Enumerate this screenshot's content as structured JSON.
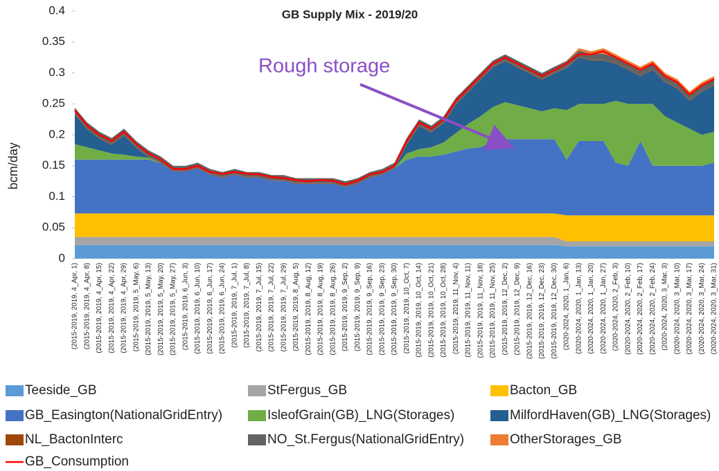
{
  "chart_data": {
    "type": "area",
    "title": "GB Supply Mix - 2019/20",
    "y_label": "bcm/day",
    "annotation": "Rough storage",
    "ylim": [
      0,
      0.4
    ],
    "yticks": [
      0,
      0.05,
      0.1,
      0.15,
      0.2,
      0.25,
      0.3,
      0.35,
      0.4
    ],
    "stacked": true,
    "categories": [
      "(2015-2019, 2019, 4_Apr, 1)",
      "(2015-2019, 2019, 4_Apr, 8)",
      "(2015-2019, 2019, 4_Apr, 15)",
      "(2015-2019, 2019, 4_Apr, 22)",
      "(2015-2019, 2019, 4_Apr, 29)",
      "(2015-2019, 2019, 5_May, 6)",
      "(2015-2019, 2019, 5_May, 13)",
      "(2015-2019, 2019, 5_May, 20)",
      "(2015-2019, 2019, 5_May, 27)",
      "(2015-2019, 2019, 6_Jun, 3)",
      "(2015-2019, 2019, 6_Jun, 10)",
      "(2015-2019, 2019, 6_Jun, 17)",
      "(2015-2019, 2019, 6_Jun, 24)",
      "(2015-2019, 2019, 7_Jul, 1)",
      "(2015-2019, 2019, 7_Jul, 8)",
      "(2015-2019, 2019, 7_Jul, 15)",
      "(2015-2019, 2019, 7_Jul, 22)",
      "(2015-2019, 2019, 7_Jul, 29)",
      "(2015-2019, 2019, 8_Aug, 5)",
      "(2015-2019, 2019, 8_Aug, 12)",
      "(2015-2019, 2019, 8_Aug, 19)",
      "(2015-2019, 2019, 8_Aug, 26)",
      "(2015-2019, 2019, 9_Sep, 2)",
      "(2015-2019, 2019, 9_Sep, 9)",
      "(2015-2019, 2019, 9_Sep, 16)",
      "(2015-2019, 2019, 9_Sep, 23)",
      "(2015-2019, 2019, 9_Sep, 30)",
      "(2015-2019, 2019, 10_Oct, 7)",
      "(2015-2019, 2019, 10_Oct, 14)",
      "(2015-2019, 2019, 10_Oct, 21)",
      "(2015-2019, 2019, 10_Oct, 28)",
      "(2015-2019, 2019, 11_Nov, 4)",
      "(2015-2019, 2019, 11_Nov, 11)",
      "(2015-2019, 2019, 11_Nov, 18)",
      "(2015-2019, 2019, 11_Nov, 25)",
      "(2015-2019, 2019, 12_Dec, 2)",
      "(2015-2019, 2019, 12_Dec, 9)",
      "(2015-2019, 2019, 12_Dec, 16)",
      "(2015-2019, 2019, 12_Dec, 23)",
      "(2015-2019, 2019, 12_Dec, 30)",
      "(2020-2024, 2020, 1_Jan, 6)",
      "(2020-2024, 2020, 1_Jan, 13)",
      "(2020-2024, 2020, 1_Jan, 20)",
      "(2020-2024, 2020, 1_Jan, 27)",
      "(2020-2024, 2020, 2_Feb, 3)",
      "(2020-2024, 2020, 2_Feb, 10)",
      "(2020-2024, 2020, 2_Feb, 17)",
      "(2020-2024, 2020, 2_Feb, 24)",
      "(2020-2024, 2020, 3_Mar, 3)",
      "(2020-2024, 2020, 3_Mar, 10)",
      "(2020-2024, 2020, 3_Mar, 17)",
      "(2020-2024, 2020, 3_Mar, 24)",
      "(2020-2024, 2020, 3_Mar, 31)"
    ],
    "series": [
      {
        "name": "Teeside_GB",
        "color": "#5b9bd5",
        "values": [
          0.022,
          0.022,
          0.022,
          0.022,
          0.022,
          0.022,
          0.022,
          0.022,
          0.022,
          0.022,
          0.022,
          0.022,
          0.022,
          0.022,
          0.022,
          0.022,
          0.022,
          0.022,
          0.022,
          0.022,
          0.022,
          0.022,
          0.022,
          0.022,
          0.022,
          0.022,
          0.022,
          0.022,
          0.022,
          0.022,
          0.022,
          0.022,
          0.022,
          0.022,
          0.022,
          0.022,
          0.022,
          0.022,
          0.022,
          0.022,
          0.02,
          0.02,
          0.02,
          0.02,
          0.02,
          0.02,
          0.02,
          0.02,
          0.02,
          0.02,
          0.02,
          0.02,
          0.02
        ]
      },
      {
        "name": "StFergus_GB",
        "color": "#a5a5a5",
        "values": [
          0.013,
          0.013,
          0.013,
          0.013,
          0.013,
          0.013,
          0.013,
          0.013,
          0.013,
          0.013,
          0.013,
          0.013,
          0.013,
          0.013,
          0.013,
          0.013,
          0.013,
          0.013,
          0.013,
          0.013,
          0.013,
          0.013,
          0.013,
          0.013,
          0.013,
          0.013,
          0.013,
          0.013,
          0.013,
          0.013,
          0.013,
          0.013,
          0.013,
          0.013,
          0.013,
          0.013,
          0.013,
          0.013,
          0.013,
          0.013,
          0.008,
          0.008,
          0.008,
          0.008,
          0.008,
          0.008,
          0.008,
          0.008,
          0.008,
          0.008,
          0.008,
          0.008,
          0.008
        ]
      },
      {
        "name": "Bacton_GB",
        "color": "#ffc000",
        "values": [
          0.038,
          0.038,
          0.038,
          0.038,
          0.038,
          0.038,
          0.038,
          0.038,
          0.038,
          0.038,
          0.038,
          0.038,
          0.038,
          0.038,
          0.038,
          0.038,
          0.038,
          0.038,
          0.038,
          0.038,
          0.038,
          0.038,
          0.038,
          0.038,
          0.038,
          0.038,
          0.038,
          0.038,
          0.038,
          0.038,
          0.038,
          0.038,
          0.038,
          0.038,
          0.038,
          0.038,
          0.038,
          0.038,
          0.038,
          0.038,
          0.042,
          0.042,
          0.042,
          0.042,
          0.042,
          0.042,
          0.042,
          0.042,
          0.042,
          0.042,
          0.042,
          0.042,
          0.042
        ]
      },
      {
        "name": "GB_Easington(NationalGridEntry)",
        "color": "#4472c4",
        "values": [
          0.087,
          0.087,
          0.087,
          0.087,
          0.087,
          0.087,
          0.087,
          0.081,
          0.068,
          0.068,
          0.073,
          0.063,
          0.058,
          0.063,
          0.058,
          0.058,
          0.053,
          0.053,
          0.048,
          0.048,
          0.048,
          0.048,
          0.043,
          0.048,
          0.058,
          0.063,
          0.073,
          0.087,
          0.092,
          0.092,
          0.095,
          0.1,
          0.105,
          0.107,
          0.117,
          0.12,
          0.12,
          0.12,
          0.12,
          0.12,
          0.09,
          0.12,
          0.12,
          0.12,
          0.085,
          0.08,
          0.12,
          0.08,
          0.08,
          0.08,
          0.08,
          0.08,
          0.085
        ]
      },
      {
        "name": "IsleofGrain(GB)_LNG(Storages)",
        "color": "#70ad47",
        "values": [
          0.025,
          0.02,
          0.015,
          0.01,
          0.008,
          0.005,
          0.003,
          0,
          0,
          0,
          0,
          0,
          0,
          0,
          0,
          0,
          0,
          0,
          0,
          0,
          0,
          0,
          0,
          0,
          0,
          0,
          0,
          0.01,
          0.012,
          0.015,
          0.02,
          0.03,
          0.04,
          0.05,
          0.055,
          0.06,
          0.055,
          0.05,
          0.045,
          0.05,
          0.08,
          0.06,
          0.06,
          0.06,
          0.1,
          0.1,
          0.06,
          0.1,
          0.08,
          0.07,
          0.06,
          0.05,
          0.05
        ]
      },
      {
        "name": "MilfordHaven(GB)_LNG(Storages)",
        "color": "#255e91",
        "values": [
          0.048,
          0.029,
          0.019,
          0.014,
          0.031,
          0.014,
          0.001,
          0,
          0,
          0,
          0,
          0,
          0,
          0,
          0,
          0,
          0,
          0,
          0,
          0,
          0,
          0,
          0,
          0,
          0,
          0,
          0,
          0.014,
          0.037,
          0.024,
          0.031,
          0.046,
          0.051,
          0.059,
          0.064,
          0.066,
          0.061,
          0.056,
          0.051,
          0.056,
          0.068,
          0.075,
          0.07,
          0.07,
          0.06,
          0.055,
          0.045,
          0.055,
          0.055,
          0.055,
          0.045,
          0.07,
          0.075
        ]
      },
      {
        "name": "NL_BactonInterc",
        "color": "#9e480e",
        "values": [
          0.001,
          0.001,
          0.001,
          0.001,
          0.001,
          0.001,
          0.001,
          0.001,
          0.001,
          0.001,
          0.001,
          0.001,
          0.001,
          0.001,
          0.001,
          0.001,
          0.001,
          0.001,
          0.001,
          0.001,
          0.001,
          0.001,
          0.001,
          0.001,
          0.001,
          0.001,
          0.001,
          0.001,
          0.001,
          0.001,
          0.001,
          0.001,
          0.001,
          0.001,
          0.001,
          0.001,
          0.001,
          0.001,
          0.001,
          0.001,
          0.001,
          0.001,
          0.001,
          0.001,
          0.001,
          0.001,
          0.001,
          0.001,
          0.001,
          0.001,
          0.001,
          0.001,
          0.001
        ]
      },
      {
        "name": "NO_St.Fergus(NationalGridEntry)",
        "color": "#636363",
        "values": [
          0.01,
          0.01,
          0.01,
          0.01,
          0.01,
          0.01,
          0.01,
          0.01,
          0.008,
          0.008,
          0.008,
          0.008,
          0.008,
          0.008,
          0.008,
          0.008,
          0.008,
          0.008,
          0.008,
          0.008,
          0.008,
          0.008,
          0.008,
          0.008,
          0.008,
          0.008,
          0.008,
          0.01,
          0.01,
          0.01,
          0.01,
          0.01,
          0.01,
          0.01,
          0.01,
          0.01,
          0.01,
          0.01,
          0.01,
          0.01,
          0.01,
          0.01,
          0.01,
          0.01,
          0.01,
          0.01,
          0.01,
          0.01,
          0.01,
          0.01,
          0.01,
          0.01,
          0.01
        ]
      },
      {
        "name": "OtherStorages_GB",
        "color": "#ed7d31",
        "values": [
          0,
          0,
          0,
          0,
          0,
          0,
          0,
          0,
          0,
          0,
          0,
          0,
          0,
          0,
          0,
          0,
          0,
          0,
          0,
          0,
          0,
          0,
          0,
          0,
          0,
          0,
          0,
          0,
          0,
          0,
          0,
          0,
          0,
          0,
          0,
          0,
          0,
          0,
          0,
          0,
          0.001,
          0.004,
          0.004,
          0.009,
          0.004,
          0.004,
          0.004,
          0.004,
          0.004,
          0.004,
          0.004,
          0.004,
          0.004
        ]
      },
      {
        "name": "GB_Consumption",
        "color": "#ff0000",
        "type": "line",
        "values": [
          0.24,
          0.215,
          0.2,
          0.19,
          0.205,
          0.185,
          0.17,
          0.16,
          0.145,
          0.145,
          0.15,
          0.14,
          0.137,
          0.14,
          0.137,
          0.136,
          0.132,
          0.13,
          0.127,
          0.125,
          0.127,
          0.126,
          0.12,
          0.126,
          0.136,
          0.14,
          0.15,
          0.19,
          0.22,
          0.21,
          0.225,
          0.255,
          0.275,
          0.295,
          0.315,
          0.325,
          0.315,
          0.305,
          0.295,
          0.305,
          0.315,
          0.33,
          0.33,
          0.335,
          0.325,
          0.315,
          0.305,
          0.315,
          0.295,
          0.285,
          0.265,
          0.28,
          0.29
        ]
      }
    ]
  }
}
